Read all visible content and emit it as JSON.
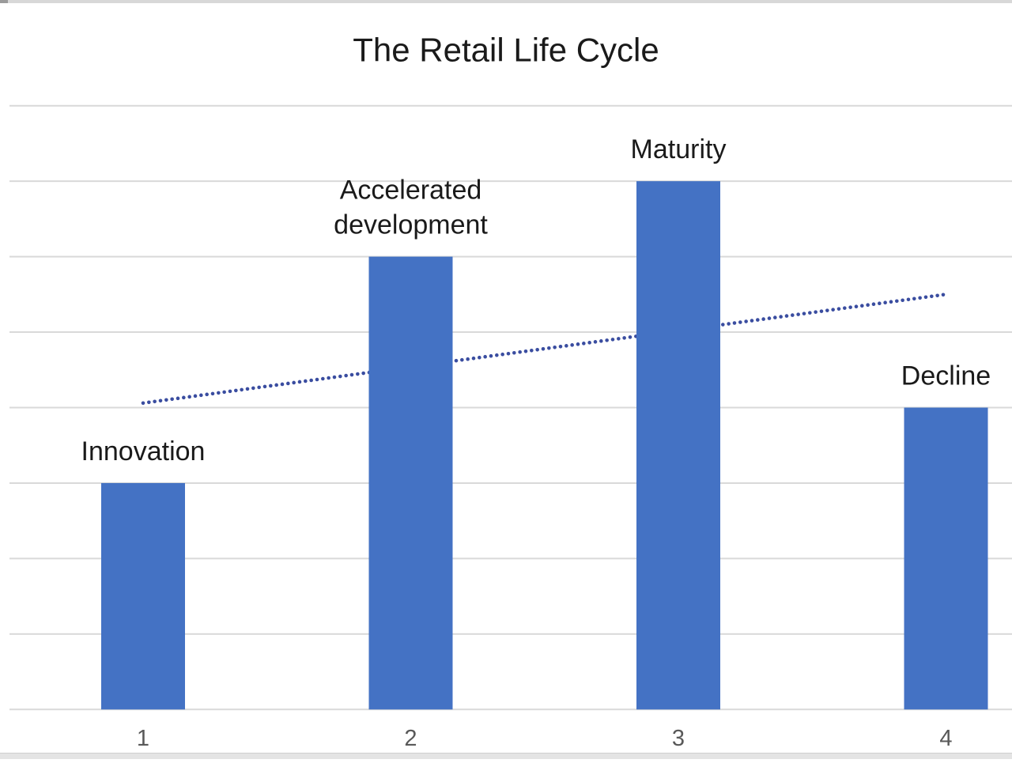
{
  "chart_data": {
    "type": "bar",
    "title": "The Retail Life Cycle",
    "categories": [
      "1",
      "2",
      "3",
      "4"
    ],
    "values": [
      3,
      6,
      7,
      4
    ],
    "xlabel": "",
    "ylabel": "",
    "ylim": [
      0,
      8
    ],
    "gridline_step": 1,
    "grid": true,
    "legend_position": "none",
    "annotations": [
      {
        "category": "1",
        "lines": [
          "Innovation"
        ]
      },
      {
        "category": "2",
        "lines": [
          "Accelerated",
          "development"
        ]
      },
      {
        "category": "3",
        "lines": [
          "Maturity"
        ]
      },
      {
        "category": "4",
        "lines": [
          "Decline"
        ]
      }
    ],
    "trendline": {
      "style": "dotted",
      "start": {
        "category": "1",
        "value": 4.06
      },
      "end": {
        "category": "4",
        "value": 5.5
      }
    },
    "colors": {
      "bar": "#4472C4",
      "trendline_dot": "#3A4DA0",
      "gridline": "#D9D9D9",
      "axis_label": "#595959",
      "title_text": "#1a1a1a",
      "annotation_text": "#1a1a1a"
    }
  }
}
